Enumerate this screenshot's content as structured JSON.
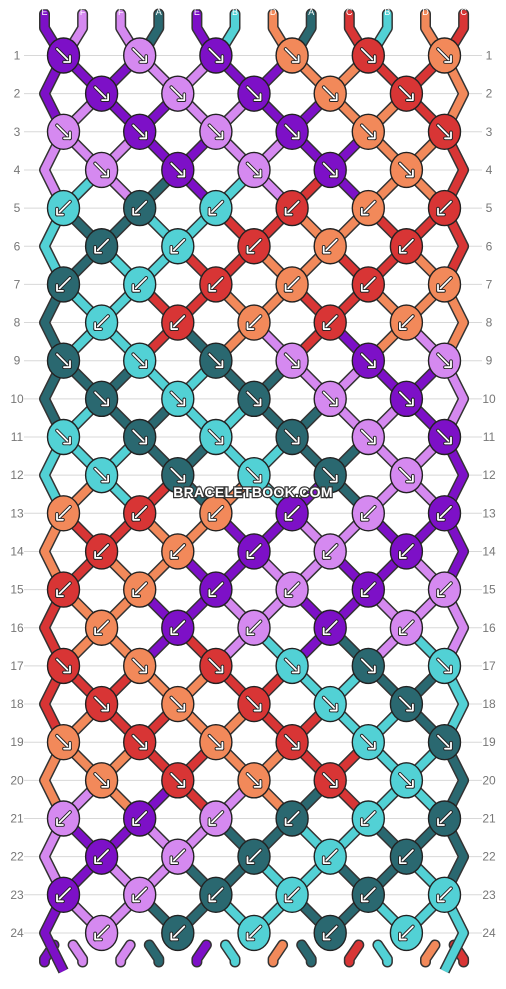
{
  "strand_colors": {
    "A": "#2a6870",
    "B": "#52d1d5",
    "C": "#d83535",
    "D": "#f2895a",
    "E": "#7d10c7",
    "F": "#d589f0"
  },
  "top_strands": [
    "E",
    "F",
    "F",
    "A",
    "E",
    "B",
    "D",
    "A",
    "C",
    "B",
    "D",
    "C"
  ],
  "bottom_strands": [
    "E",
    "F",
    "F",
    "A",
    "E",
    "B",
    "D",
    "A",
    "C",
    "B",
    "D",
    "C"
  ],
  "row_numbers": [
    "1",
    "2",
    "3",
    "4",
    "5",
    "6",
    "7",
    "8",
    "9",
    "10",
    "11",
    "12",
    "13",
    "14",
    "15",
    "16",
    "17",
    "18",
    "19",
    "20",
    "21",
    "22",
    "23",
    "24"
  ],
  "watermark": "BRACELETBOOK.COM",
  "knot_rows": [
    {
      "knots": [
        {
          "c": "E",
          "d": "r"
        },
        {
          "c": "F",
          "d": "r"
        },
        {
          "c": "E",
          "d": "r"
        },
        {
          "c": "D",
          "d": "r"
        },
        {
          "c": "C",
          "d": "r"
        },
        {
          "c": "D",
          "d": "r"
        }
      ]
    },
    {
      "knots": [
        {
          "c": "E",
          "d": "r"
        },
        {
          "c": "F",
          "d": "r"
        },
        {
          "c": "E",
          "d": "r"
        },
        {
          "c": "D",
          "d": "r"
        },
        {
          "c": "C",
          "d": "r"
        }
      ]
    },
    {
      "knots": [
        {
          "c": "F",
          "d": "r"
        },
        {
          "c": "E",
          "d": "r"
        },
        {
          "c": "F",
          "d": "r"
        },
        {
          "c": "E",
          "d": "r"
        },
        {
          "c": "D",
          "d": "r"
        },
        {
          "c": "C",
          "d": "r"
        }
      ]
    },
    {
      "knots": [
        {
          "c": "F",
          "d": "r"
        },
        {
          "c": "E",
          "d": "r"
        },
        {
          "c": "F",
          "d": "r"
        },
        {
          "c": "E",
          "d": "r"
        },
        {
          "c": "D",
          "d": "r"
        }
      ]
    },
    {
      "knots": [
        {
          "c": "B",
          "d": "l"
        },
        {
          "c": "A",
          "d": "l"
        },
        {
          "c": "B",
          "d": "l"
        },
        {
          "c": "C",
          "d": "l"
        },
        {
          "c": "D",
          "d": "l"
        },
        {
          "c": "C",
          "d": "l"
        }
      ]
    },
    {
      "knots": [
        {
          "c": "A",
          "d": "l"
        },
        {
          "c": "B",
          "d": "l"
        },
        {
          "c": "C",
          "d": "l"
        },
        {
          "c": "D",
          "d": "l"
        },
        {
          "c": "C",
          "d": "l"
        }
      ]
    },
    {
      "knots": [
        {
          "c": "A",
          "d": "l"
        },
        {
          "c": "B",
          "d": "l"
        },
        {
          "c": "C",
          "d": "l"
        },
        {
          "c": "D",
          "d": "l"
        },
        {
          "c": "C",
          "d": "l"
        },
        {
          "c": "D",
          "d": "l"
        }
      ]
    },
    {
      "knots": [
        {
          "c": "B",
          "d": "l"
        },
        {
          "c": "C",
          "d": "l"
        },
        {
          "c": "D",
          "d": "l"
        },
        {
          "c": "C",
          "d": "l"
        },
        {
          "c": "D",
          "d": "l"
        }
      ]
    },
    {
      "knots": [
        {
          "c": "A",
          "d": "r"
        },
        {
          "c": "B",
          "d": "r"
        },
        {
          "c": "A",
          "d": "r"
        },
        {
          "c": "F",
          "d": "r"
        },
        {
          "c": "E",
          "d": "r"
        },
        {
          "c": "F",
          "d": "r"
        }
      ]
    },
    {
      "knots": [
        {
          "c": "A",
          "d": "r"
        },
        {
          "c": "B",
          "d": "r"
        },
        {
          "c": "A",
          "d": "r"
        },
        {
          "c": "F",
          "d": "r"
        },
        {
          "c": "E",
          "d": "r"
        }
      ]
    },
    {
      "knots": [
        {
          "c": "B",
          "d": "r"
        },
        {
          "c": "A",
          "d": "r"
        },
        {
          "c": "B",
          "d": "r"
        },
        {
          "c": "A",
          "d": "r"
        },
        {
          "c": "F",
          "d": "r"
        },
        {
          "c": "E",
          "d": "r"
        }
      ]
    },
    {
      "knots": [
        {
          "c": "B",
          "d": "r"
        },
        {
          "c": "A",
          "d": "r"
        },
        {
          "c": "B",
          "d": "r"
        },
        {
          "c": "A",
          "d": "r"
        },
        {
          "c": "F",
          "d": "r"
        }
      ]
    },
    {
      "knots": [
        {
          "c": "D",
          "d": "l"
        },
        {
          "c": "C",
          "d": "l"
        },
        {
          "c": "D",
          "d": "l"
        },
        {
          "c": "E",
          "d": "l"
        },
        {
          "c": "F",
          "d": "l"
        },
        {
          "c": "E",
          "d": "l"
        }
      ]
    },
    {
      "knots": [
        {
          "c": "C",
          "d": "l"
        },
        {
          "c": "D",
          "d": "l"
        },
        {
          "c": "E",
          "d": "l"
        },
        {
          "c": "F",
          "d": "l"
        },
        {
          "c": "E",
          "d": "l"
        }
      ]
    },
    {
      "knots": [
        {
          "c": "C",
          "d": "l"
        },
        {
          "c": "D",
          "d": "l"
        },
        {
          "c": "E",
          "d": "l"
        },
        {
          "c": "F",
          "d": "l"
        },
        {
          "c": "E",
          "d": "l"
        },
        {
          "c": "F",
          "d": "l"
        }
      ]
    },
    {
      "knots": [
        {
          "c": "D",
          "d": "l"
        },
        {
          "c": "E",
          "d": "l"
        },
        {
          "c": "F",
          "d": "l"
        },
        {
          "c": "E",
          "d": "l"
        },
        {
          "c": "F",
          "d": "l"
        }
      ]
    },
    {
      "knots": [
        {
          "c": "C",
          "d": "r"
        },
        {
          "c": "D",
          "d": "r"
        },
        {
          "c": "C",
          "d": "r"
        },
        {
          "c": "B",
          "d": "r"
        },
        {
          "c": "A",
          "d": "r"
        },
        {
          "c": "B",
          "d": "r"
        }
      ]
    },
    {
      "knots": [
        {
          "c": "C",
          "d": "r"
        },
        {
          "c": "D",
          "d": "r"
        },
        {
          "c": "C",
          "d": "r"
        },
        {
          "c": "B",
          "d": "r"
        },
        {
          "c": "A",
          "d": "r"
        }
      ]
    },
    {
      "knots": [
        {
          "c": "D",
          "d": "r"
        },
        {
          "c": "C",
          "d": "r"
        },
        {
          "c": "D",
          "d": "r"
        },
        {
          "c": "C",
          "d": "r"
        },
        {
          "c": "B",
          "d": "r"
        },
        {
          "c": "A",
          "d": "r"
        }
      ]
    },
    {
      "knots": [
        {
          "c": "D",
          "d": "r"
        },
        {
          "c": "C",
          "d": "r"
        },
        {
          "c": "D",
          "d": "r"
        },
        {
          "c": "C",
          "d": "r"
        },
        {
          "c": "B",
          "d": "r"
        }
      ]
    },
    {
      "knots": [
        {
          "c": "F",
          "d": "l"
        },
        {
          "c": "E",
          "d": "l"
        },
        {
          "c": "F",
          "d": "l"
        },
        {
          "c": "A",
          "d": "l"
        },
        {
          "c": "B",
          "d": "l"
        },
        {
          "c": "A",
          "d": "l"
        }
      ]
    },
    {
      "knots": [
        {
          "c": "E",
          "d": "l"
        },
        {
          "c": "F",
          "d": "l"
        },
        {
          "c": "A",
          "d": "l"
        },
        {
          "c": "B",
          "d": "l"
        },
        {
          "c": "A",
          "d": "l"
        }
      ]
    },
    {
      "knots": [
        {
          "c": "E",
          "d": "l"
        },
        {
          "c": "F",
          "d": "l"
        },
        {
          "c": "A",
          "d": "l"
        },
        {
          "c": "B",
          "d": "l"
        },
        {
          "c": "A",
          "d": "l"
        },
        {
          "c": "B",
          "d": "l"
        }
      ]
    },
    {
      "knots": [
        {
          "c": "F",
          "d": "l"
        },
        {
          "c": "A",
          "d": "l"
        },
        {
          "c": "B",
          "d": "l"
        },
        {
          "c": "A",
          "d": "l"
        },
        {
          "c": "B",
          "d": "l"
        }
      ]
    }
  ]
}
